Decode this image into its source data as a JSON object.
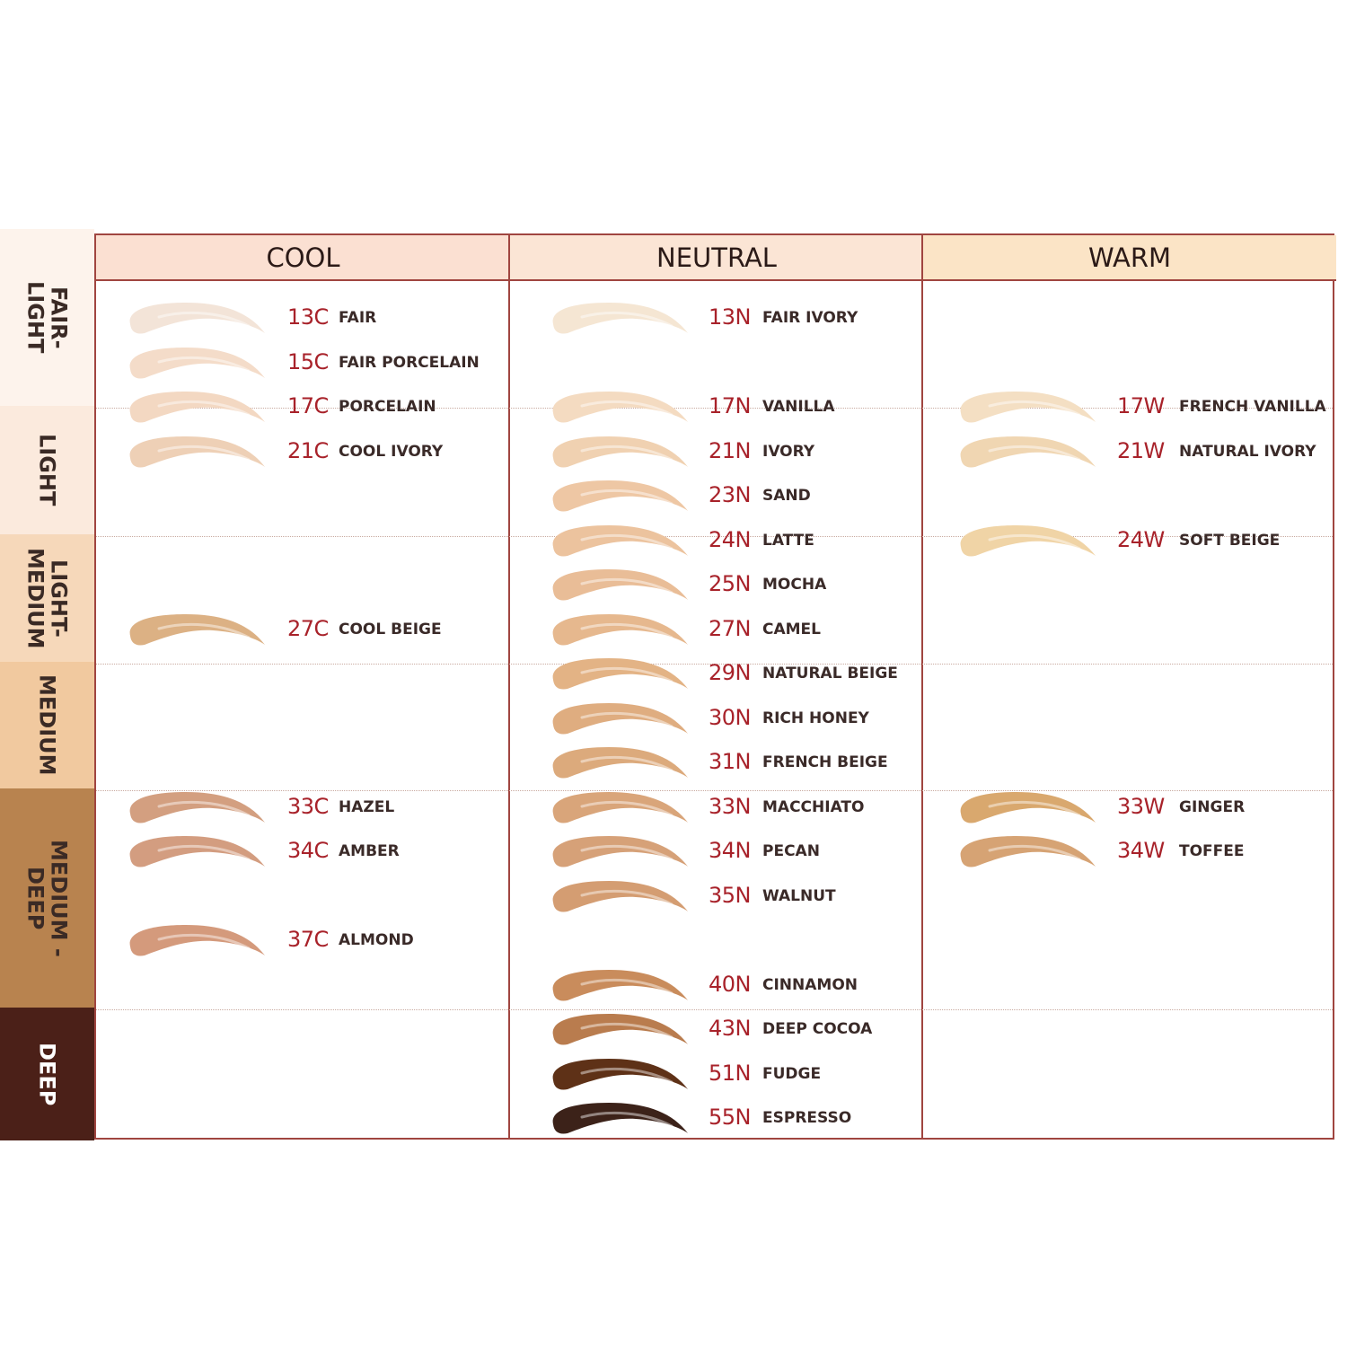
{
  "columns": [
    {
      "label": "COOL",
      "color": "#fbe0d2"
    },
    {
      "label": "NEUTRAL",
      "color": "#fbe5d5"
    },
    {
      "label": "WARM",
      "color": "#fbe4c6"
    }
  ],
  "bands": [
    {
      "label": "FAIR-\nLIGHT",
      "color": "#fdf3ec",
      "from": "13",
      "to": "15"
    },
    {
      "label": "LIGHT",
      "color": "#fbeadd",
      "from": "17",
      "to": "23"
    },
    {
      "label": "LIGHT-\nMEDIUM",
      "color": "#f6d8ba",
      "from": "24",
      "to": "27"
    },
    {
      "label": "MEDIUM",
      "color": "#f1c99f",
      "from": "29",
      "to": "31"
    },
    {
      "label": "MEDIUM -\nDEEP",
      "color": "#b8834f",
      "from": "33",
      "to": "40"
    },
    {
      "label": "DEEP",
      "color": "#4b2018",
      "from": "43",
      "to": "55"
    }
  ],
  "levels": [
    "13",
    "15",
    "17",
    "21",
    "23",
    "24",
    "25",
    "27",
    "29",
    "30",
    "31",
    "33",
    "34",
    "35",
    "37",
    "40",
    "43",
    "51",
    "55"
  ],
  "shades": {
    "cool": [
      {
        "code": "13C",
        "name": "FAIR",
        "color": "#f3e4d8"
      },
      {
        "code": "15C",
        "name": "FAIR PORCELAIN",
        "color": "#f4dcc9"
      },
      {
        "code": "17C",
        "name": "PORCELAIN",
        "color": "#f3d8c2"
      },
      {
        "code": "21C",
        "name": "COOL IVORY",
        "color": "#eed0b6"
      },
      {
        "code": "27C",
        "name": "COOL BEIGE",
        "color": "#dcb184"
      },
      {
        "code": "33C",
        "name": "HAZEL",
        "color": "#d39f80"
      },
      {
        "code": "34C",
        "name": "AMBER",
        "color": "#d39d80"
      },
      {
        "code": "37C",
        "name": "ALMOND",
        "color": "#d49a7c"
      }
    ],
    "neutral": [
      {
        "code": "13N",
        "name": "FAIR IVORY",
        "color": "#f5e6d3"
      },
      {
        "code": "17N",
        "name": "VANILLA",
        "color": "#f4dbc1"
      },
      {
        "code": "21N",
        "name": "IVORY",
        "color": "#f0d1b1"
      },
      {
        "code": "23N",
        "name": "SAND",
        "color": "#eec7a4"
      },
      {
        "code": "24N",
        "name": "LATTE",
        "color": "#ecc39e"
      },
      {
        "code": "25N",
        "name": "MOCHA",
        "color": "#e9bd97"
      },
      {
        "code": "27N",
        "name": "CAMEL",
        "color": "#e6b88e"
      },
      {
        "code": "29N",
        "name": "NATURAL BEIGE",
        "color": "#e3b385"
      },
      {
        "code": "30N",
        "name": "RICH HONEY",
        "color": "#dfad80"
      },
      {
        "code": "31N",
        "name": "FRENCH BEIGE",
        "color": "#dcaa7c"
      },
      {
        "code": "33N",
        "name": "MACCHIATO",
        "color": "#d9a57a"
      },
      {
        "code": "34N",
        "name": "PECAN",
        "color": "#d6a178"
      },
      {
        "code": "35N",
        "name": "WALNUT",
        "color": "#d49d72"
      },
      {
        "code": "40N",
        "name": "CINNAMON",
        "color": "#c98c5c"
      },
      {
        "code": "43N",
        "name": "DEEP COCOA",
        "color": "#b97c4e"
      },
      {
        "code": "51N",
        "name": "FUDGE",
        "color": "#5e3117"
      },
      {
        "code": "55N",
        "name": "ESPRESSO",
        "color": "#3c2219"
      }
    ],
    "warm": [
      {
        "code": "17W",
        "name": "FRENCH VANILLA",
        "color": "#f4dfc3"
      },
      {
        "code": "21W",
        "name": "NATURAL IVORY",
        "color": "#f0d6b2"
      },
      {
        "code": "24W",
        "name": "SOFT BEIGE",
        "color": "#f0d4a6"
      },
      {
        "code": "33W",
        "name": "GINGER",
        "color": "#d9a86e"
      },
      {
        "code": "34W",
        "name": "TOFFEE",
        "color": "#d6a374"
      }
    ]
  },
  "colors": {
    "border": "#a04540",
    "code_text": "#a8222a"
  }
}
